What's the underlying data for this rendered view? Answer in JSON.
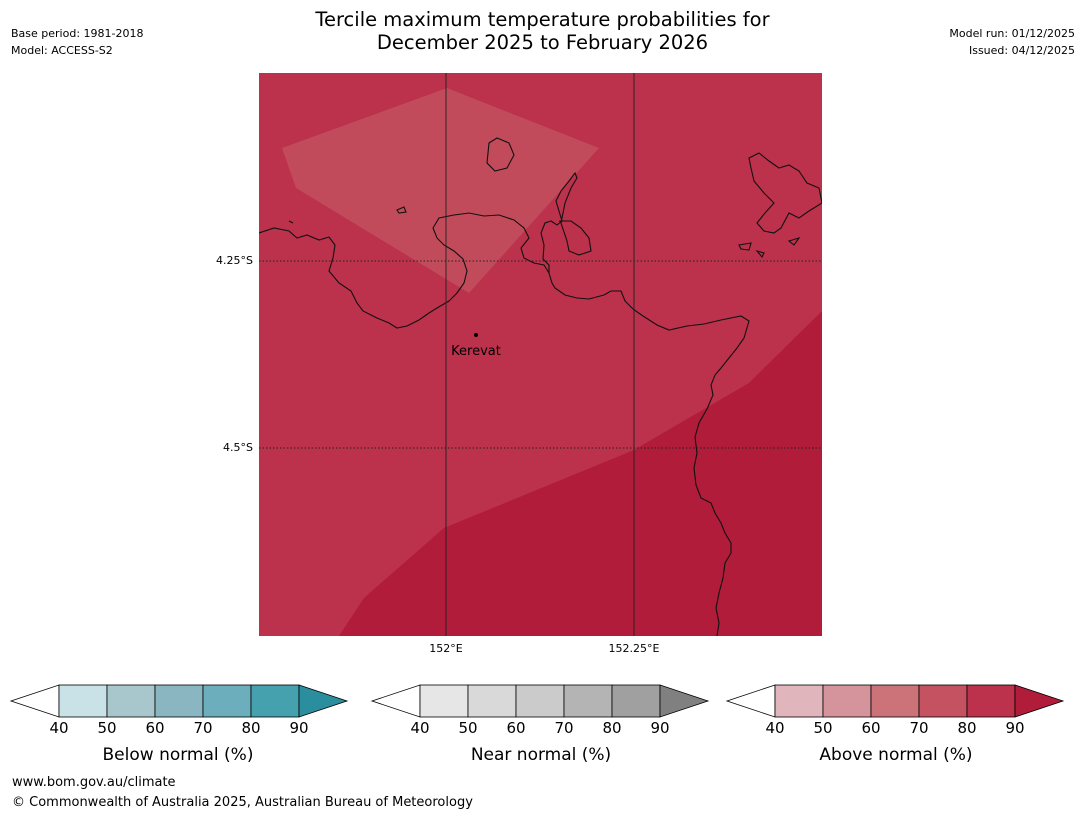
{
  "header": {
    "title_line1": "Tercile maximum temperature probabilities for",
    "title_line2": "December 2025 to February 2026",
    "base_period": "Base period: 1981-2018",
    "model": "Model: ACCESS-S2",
    "model_run": "Model run: 01/12/2025",
    "issued": "Issued: 04/12/2025"
  },
  "map": {
    "place_label": "Kerevat",
    "lat_labels": [
      "4.25°S",
      "4.5°S"
    ],
    "lon_labels": [
      "152°E",
      "152.25°E"
    ],
    "fill_colors": {
      "base": "#bc314b",
      "upper": "#c14b5a",
      "lower": "#b01c39"
    }
  },
  "colorbars": [
    {
      "label": "Below normal (%)",
      "ticks": [
        "40",
        "50",
        "60",
        "70",
        "80",
        "90"
      ],
      "colors": [
        "#ffffff",
        "#c9e2e7",
        "#a8c7cc",
        "#89b6c1",
        "#6caebb",
        "#46a1ae",
        "#2a8e9e"
      ]
    },
    {
      "label": "Near normal (%)",
      "ticks": [
        "40",
        "50",
        "60",
        "70",
        "80",
        "90"
      ],
      "colors": [
        "#ffffff",
        "#e6e6e6",
        "#d9d9d9",
        "#cbcbcb",
        "#b4b4b4",
        "#a0a0a0",
        "#808080"
      ]
    },
    {
      "label": "Above normal (%)",
      "ticks": [
        "40",
        "50",
        "60",
        "70",
        "80",
        "90"
      ],
      "colors": [
        "#ffffff",
        "#e0b5bb",
        "#d5949b",
        "#cc7279",
        "#c45261",
        "#bc314b",
        "#b01c39"
      ]
    }
  ],
  "footer": {
    "url": "www.bom.gov.au/climate",
    "copyright": "© Commonwealth of Australia 2025, Australian Bureau of Meteorology"
  }
}
